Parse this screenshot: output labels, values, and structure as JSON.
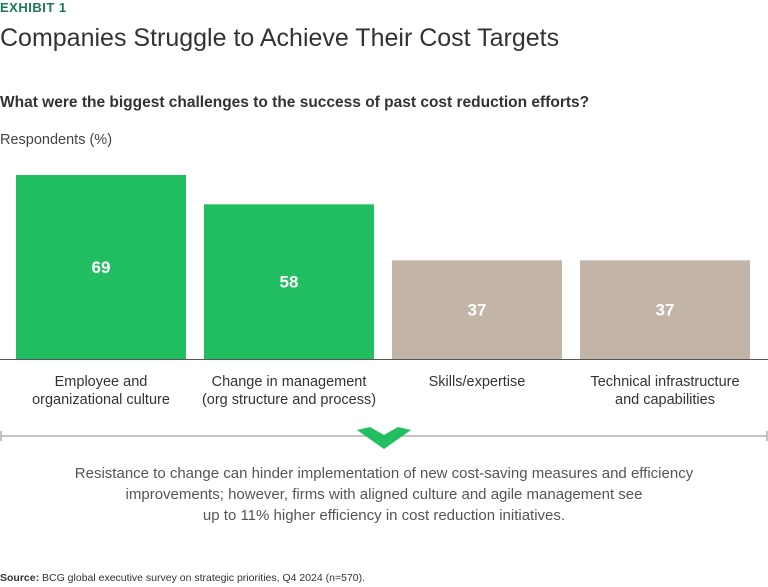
{
  "exhibit_label": "EXHIBIT 1",
  "title": "Companies Struggle to Achieve Their Cost Targets",
  "question": "What were the biggest challenges to the success of past cost reduction efforts?",
  "colors": {
    "accent": "#21bf61",
    "muted": "#c2b4a6",
    "brand_dark": "#197a56",
    "axis": "#555555"
  },
  "chart_data": {
    "type": "bar",
    "ylabel": "Respondents (%)",
    "ylim": [
      0,
      69
    ],
    "categories": [
      [
        "Employee and",
        "organizational culture"
      ],
      [
        "Change in management",
        "(org structure and process)"
      ],
      [
        "Skills/expertise"
      ],
      [
        "Technical infrastructure",
        "and capabilities"
      ]
    ],
    "values": [
      69,
      58,
      37,
      37
    ],
    "highlighted": [
      true,
      true,
      false,
      false
    ]
  },
  "caption_lines": [
    "Resistance to change can hinder implementation of new cost-saving measures and efficiency",
    "improvements; however, firms with aligned culture and agile  management see",
    "up to 11% higher efficiency in cost reduction initiatives."
  ],
  "source": {
    "label": "Source:",
    "text": "BCG global executive survey on strategic priorities, Q4 2024 (n=570)."
  },
  "icons": {
    "divider_marker": "chevron-down-icon"
  }
}
